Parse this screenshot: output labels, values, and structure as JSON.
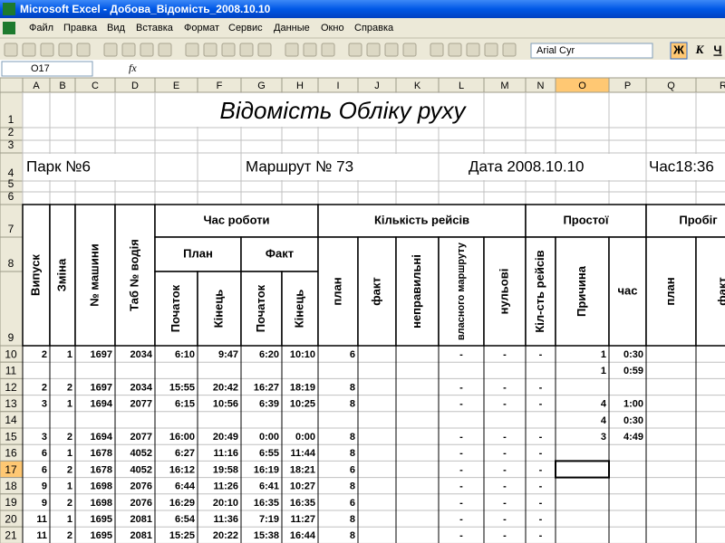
{
  "window": {
    "title": "Microsoft Excel - Добова_Відомість_2008.10.10"
  },
  "menu": [
    "Файл",
    "Правка",
    "Вид",
    "Вставка",
    "Формат",
    "Сервис",
    "Данные",
    "Окно",
    "Справка"
  ],
  "toolbar": {
    "font": "Arial Cyr",
    "bold": "Ж",
    "italic": "К",
    "underline": "Ч"
  },
  "formula_bar": {
    "name_box": "O17",
    "fx": "fx"
  },
  "columns": [
    "A",
    "B",
    "C",
    "D",
    "E",
    "F",
    "G",
    "H",
    "I",
    "J",
    "K",
    "L",
    "M",
    "N",
    "O",
    "P",
    "Q",
    "R"
  ],
  "row_numbers": [
    1,
    2,
    3,
    4,
    5,
    6,
    7,
    8,
    9,
    10,
    11,
    12,
    13,
    14,
    15,
    16,
    17,
    18,
    19,
    20,
    21
  ],
  "sheet": {
    "title": "Відомість Обліку руху",
    "park": "Парк №6",
    "route": "Маршрут № 73",
    "date": "Дата 2008.10.10",
    "time": "Час18:36",
    "headers": {
      "vypusk": "Випуск",
      "zmina": "Зміна",
      "mashyna": "№ машини",
      "tab": "Таб № водія",
      "chas_roboty": "Час роботи",
      "plan_h": "План",
      "fakt_h": "Факт",
      "pochatok_plan": "Початок",
      "kinets_plan": "Кінець",
      "pochatok_fakt": "Початок",
      "kinets_fakt": "Кінець",
      "kilkist": "Кількість рейсів",
      "plan_r": "план",
      "fakt_r": "факт",
      "nepravylni": "неправильні",
      "vlasnoho": "власного маршруту",
      "nulovi": "нульові",
      "prostoi": "Простої",
      "kilst": "Кіл-сть рейсів",
      "prychyna": "Причина",
      "chas": "час",
      "probih": "Пробіг",
      "plan_p": "план",
      "fakt_p": "факт"
    },
    "rows": [
      [
        2,
        1,
        1697,
        2034,
        "6:10",
        "9:47",
        "6:20",
        "10:10",
        6,
        null,
        null,
        "-",
        "-",
        "-",
        1,
        "0:30"
      ],
      [
        null,
        null,
        null,
        null,
        null,
        null,
        null,
        null,
        null,
        null,
        null,
        null,
        null,
        null,
        1,
        "0:59"
      ],
      [
        2,
        2,
        1697,
        2034,
        "15:55",
        "20:42",
        "16:27",
        "18:19",
        8,
        null,
        null,
        "-",
        "-",
        "-",
        null,
        null
      ],
      [
        3,
        1,
        1694,
        2077,
        "6:15",
        "10:56",
        "6:39",
        "10:25",
        8,
        null,
        null,
        "-",
        "-",
        "-",
        4,
        "1:00"
      ],
      [
        null,
        null,
        null,
        null,
        null,
        null,
        null,
        null,
        null,
        null,
        null,
        null,
        null,
        null,
        4,
        "0:30"
      ],
      [
        3,
        2,
        1694,
        2077,
        "16:00",
        "20:49",
        "0:00",
        "0:00",
        8,
        null,
        null,
        "-",
        "-",
        "-",
        3,
        "4:49"
      ],
      [
        6,
        1,
        1678,
        4052,
        "6:27",
        "11:16",
        "6:55",
        "11:44",
        8,
        null,
        null,
        "-",
        "-",
        "-",
        null,
        null
      ],
      [
        6,
        2,
        1678,
        4052,
        "16:12",
        "19:58",
        "16:19",
        "18:21",
        6,
        null,
        null,
        "-",
        "-",
        "-",
        null,
        null
      ],
      [
        9,
        1,
        1698,
        2076,
        "6:44",
        "11:26",
        "6:41",
        "10:27",
        8,
        null,
        null,
        "-",
        "-",
        "-",
        null,
        null
      ],
      [
        9,
        2,
        1698,
        2076,
        "16:29",
        "20:10",
        "16:35",
        "16:35",
        6,
        null,
        null,
        "-",
        "-",
        "-",
        null,
        null
      ],
      [
        11,
        1,
        1695,
        2081,
        "6:54",
        "11:36",
        "7:19",
        "11:27",
        8,
        null,
        null,
        "-",
        "-",
        "-",
        null,
        null
      ],
      [
        11,
        2,
        1695,
        2081,
        "15:25",
        "20:22",
        "15:38",
        "16:44",
        8,
        null,
        null,
        "-",
        "-",
        "-",
        null,
        null
      ]
    ]
  }
}
